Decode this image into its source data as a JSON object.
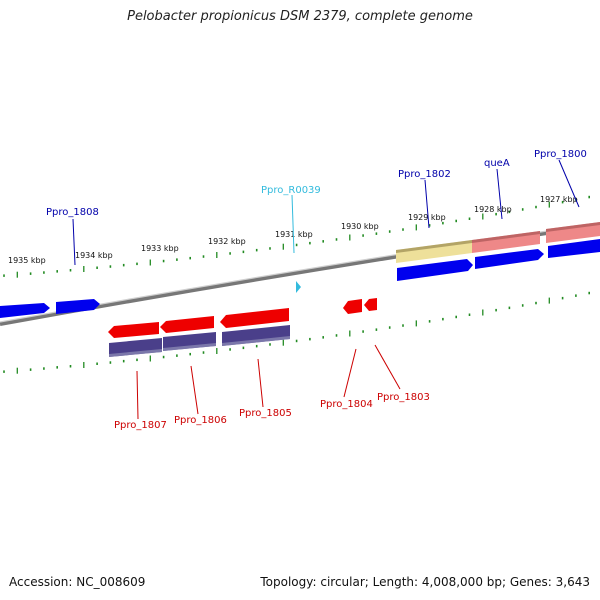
{
  "title": "Pelobacter propionicus DSM 2379, complete genome",
  "footer": {
    "accession": "Accession: NC_008609",
    "summary": "Topology: circular; Length: 4,008,000 bp; Genes: 3,643"
  },
  "kbp_labels": [
    "1935 kbp",
    "1934 kbp",
    "1933 kbp",
    "1932 kbp",
    "1931 kbp",
    "1930 kbp",
    "1929 kbp",
    "1928 kbp",
    "1927 kbp"
  ],
  "gene_labels": {
    "ppro_1808": "Ppro_1808",
    "ppro_r0039": "Ppro_R0039",
    "ppro_1802": "Ppro_1802",
    "quea": "queA",
    "ppro_1800": "Ppro_1800",
    "ppro_1807": "Ppro_1807",
    "ppro_1806": "Ppro_1806",
    "ppro_1805": "Ppro_1805",
    "ppro_1804": "Ppro_1804",
    "ppro_1803": "Ppro_1803"
  },
  "colors": {
    "forward_label": "#0000aa",
    "reverse_label": "#cc0000",
    "rna_label": "#33bbdd",
    "tick": "#228b22",
    "cds_blue": "#0000ee",
    "cds_red": "#ee0000",
    "pale_red": "#ee8888",
    "pale_yellow": "#eee09a",
    "purple": "#4a3f8a",
    "backbone": "#777777"
  }
}
